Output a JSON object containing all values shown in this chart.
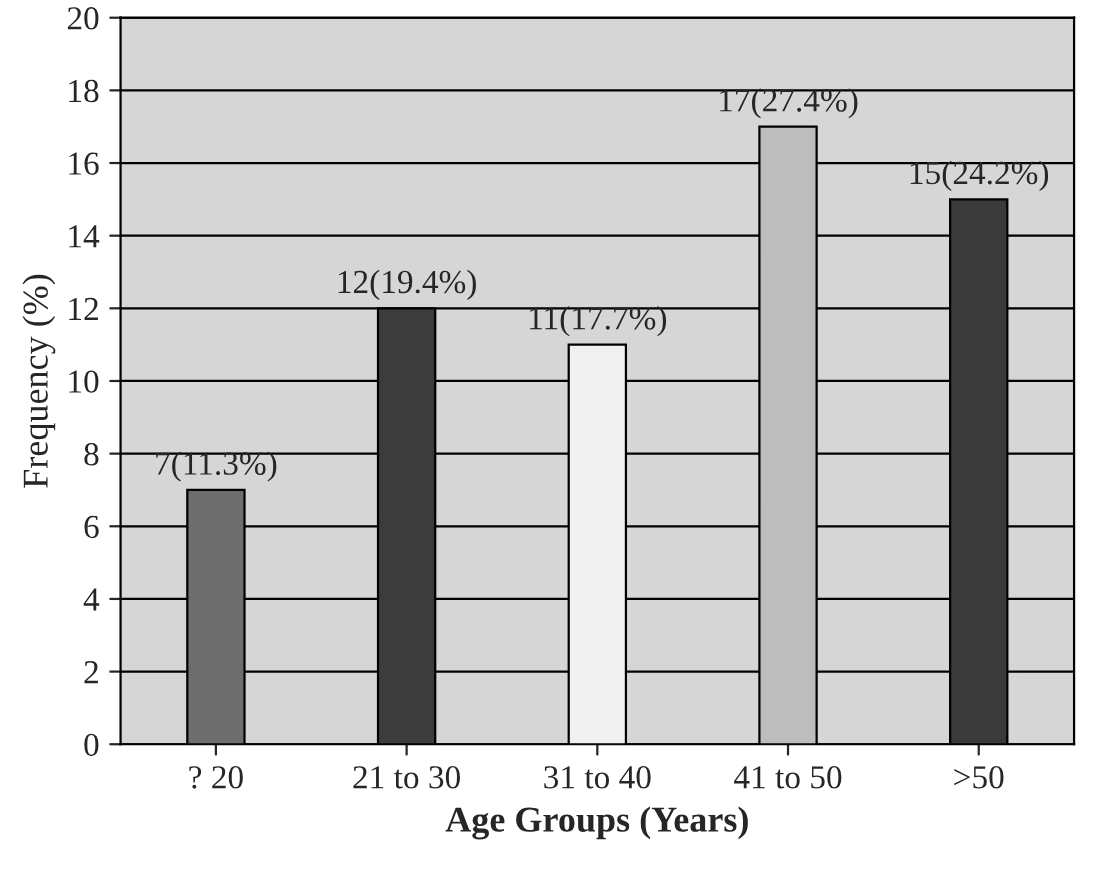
{
  "chart_data": {
    "type": "bar",
    "xlabel": "Age Groups (Years)",
    "ylabel": "Frequency (%)",
    "categories": [
      "? 20",
      "21 to 30",
      "31 to 40",
      "41 to 50",
      ">50"
    ],
    "values": [
      7,
      12,
      11,
      17,
      15
    ],
    "colors": [
      "#6e6e6e",
      "#3c3c3c",
      "#f0f0f0",
      "#bdbdbd",
      "#3a3a3a"
    ],
    "value_labels": [
      "7(11.3%)",
      "12(19.4%)",
      "11(17.7%)",
      "17(27.4%)",
      "15(24.2%)"
    ],
    "ylim": [
      0,
      20
    ],
    "yticks": [
      0,
      2,
      4,
      6,
      8,
      10,
      12,
      14,
      16,
      18,
      20
    ],
    "grid": "y",
    "legend": false
  }
}
